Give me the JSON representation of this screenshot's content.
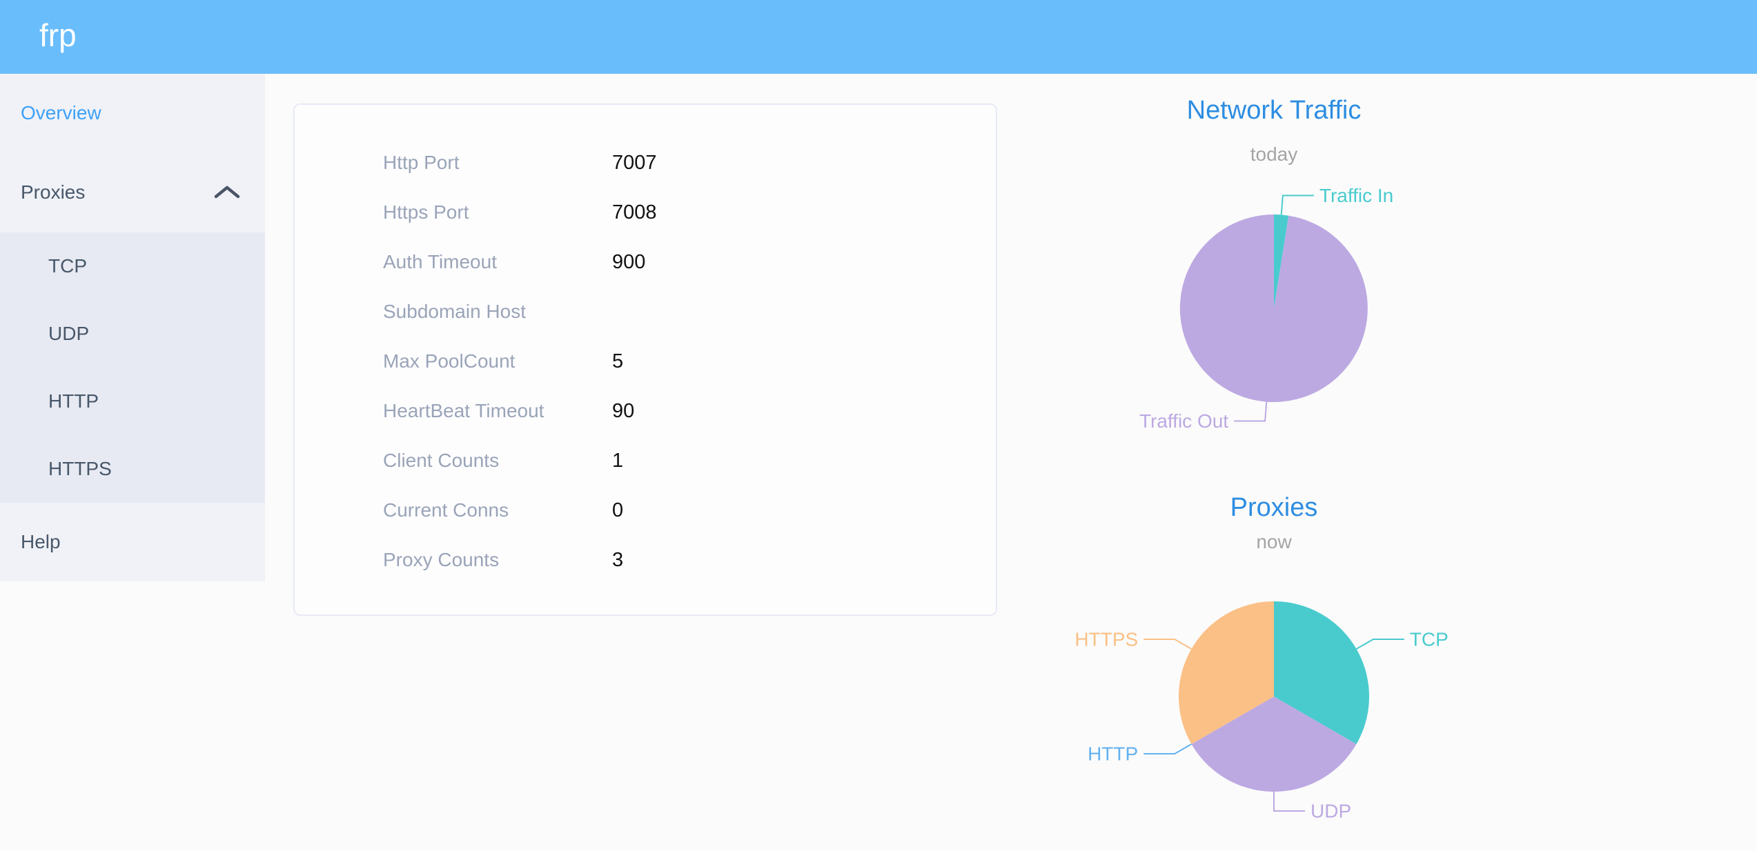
{
  "header": {
    "logo": "frp"
  },
  "sidebar": {
    "overview": "Overview",
    "proxies": "Proxies",
    "proxies_expanded": true,
    "proxy_types": [
      "TCP",
      "UDP",
      "HTTP",
      "HTTPS"
    ],
    "help": "Help"
  },
  "server_info": {
    "rows": [
      {
        "label": "Http Port",
        "value": "7007"
      },
      {
        "label": "Https Port",
        "value": "7008"
      },
      {
        "label": "Auth Timeout",
        "value": "900"
      },
      {
        "label": "Subdomain Host",
        "value": ""
      },
      {
        "label": "Max PoolCount",
        "value": "5"
      },
      {
        "label": "HeartBeat Timeout",
        "value": "90"
      },
      {
        "label": "Client Counts",
        "value": "1"
      },
      {
        "label": "Current Conns",
        "value": "0"
      },
      {
        "label": "Proxy Counts",
        "value": "3"
      }
    ]
  },
  "chart_data": [
    {
      "type": "pie",
      "title": "Network Traffic",
      "subtitle": "today",
      "legend_position": "outside-callout-labels",
      "series": [
        {
          "name": "Traffic In",
          "percent": 2.5,
          "color": "#49cbce"
        },
        {
          "name": "Traffic Out",
          "percent": 97.5,
          "color": "#bca9e2"
        }
      ]
    },
    {
      "type": "pie",
      "title": "Proxies",
      "subtitle": "now",
      "legend_position": "outside-callout-labels",
      "series": [
        {
          "name": "TCP",
          "value": 1,
          "percent": 33.3,
          "color": "#49cbce"
        },
        {
          "name": "UDP",
          "value": 1,
          "percent": 33.3,
          "color": "#bca9e2"
        },
        {
          "name": "HTTP",
          "value": 0,
          "percent": 0,
          "color": "#62b1f0"
        },
        {
          "name": "HTTPS",
          "value": 1,
          "percent": 33.3,
          "color": "#fac086"
        }
      ]
    }
  ],
  "colors": {
    "header_bg": "#6abdfb",
    "sidebar_bg": "#f0f2f7",
    "submenu_bg": "#e7eaf2",
    "menu_text": "#48576a",
    "active_menu_text": "#3ea1f8",
    "chart_title": "#2d8de2",
    "table_label": "#9aa4b8"
  }
}
